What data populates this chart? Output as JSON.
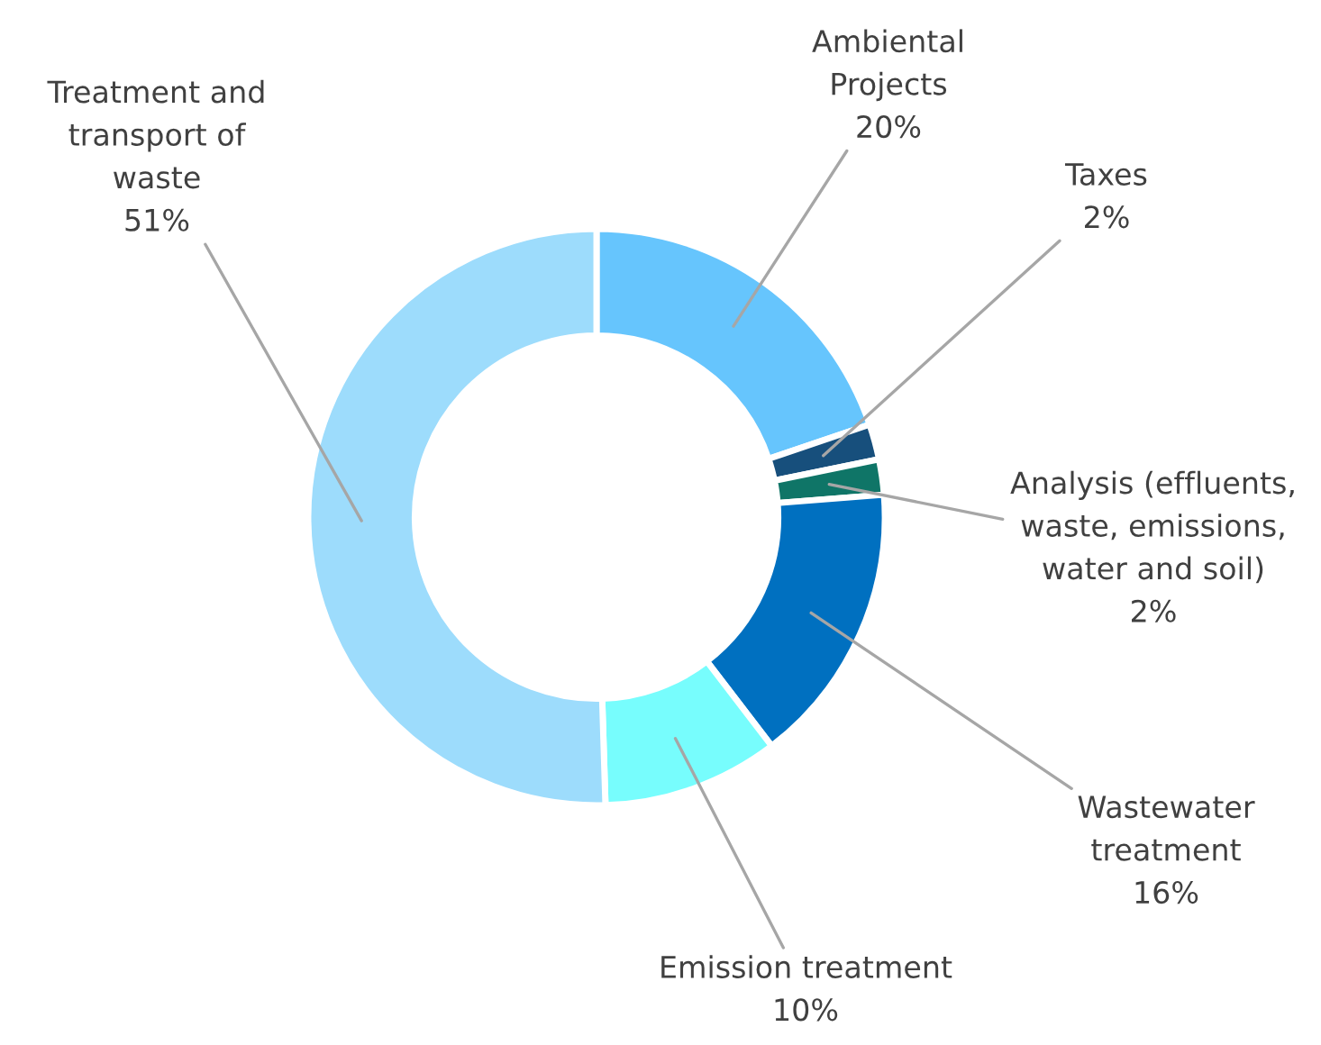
{
  "chart_data": {
    "type": "donut",
    "categories": [
      "Ambiental\nProjects",
      "Taxes",
      "Analysis (effluents,\nwaste, emissions,\nwater and soil)",
      "Wastewater\ntreatment",
      "Emission treatment",
      "Treatment and\ntransport of\nwaste"
    ],
    "values": [
      20,
      2,
      2,
      16,
      10,
      51
    ],
    "colors": [
      "#66c5fd",
      "#174f7c",
      "#0f7567",
      "#0070c0",
      "#77fdfd",
      "#9ddcfc"
    ],
    "value_labels": [
      "20%",
      "2%",
      "2%",
      "16%",
      "10%",
      "51%"
    ]
  }
}
